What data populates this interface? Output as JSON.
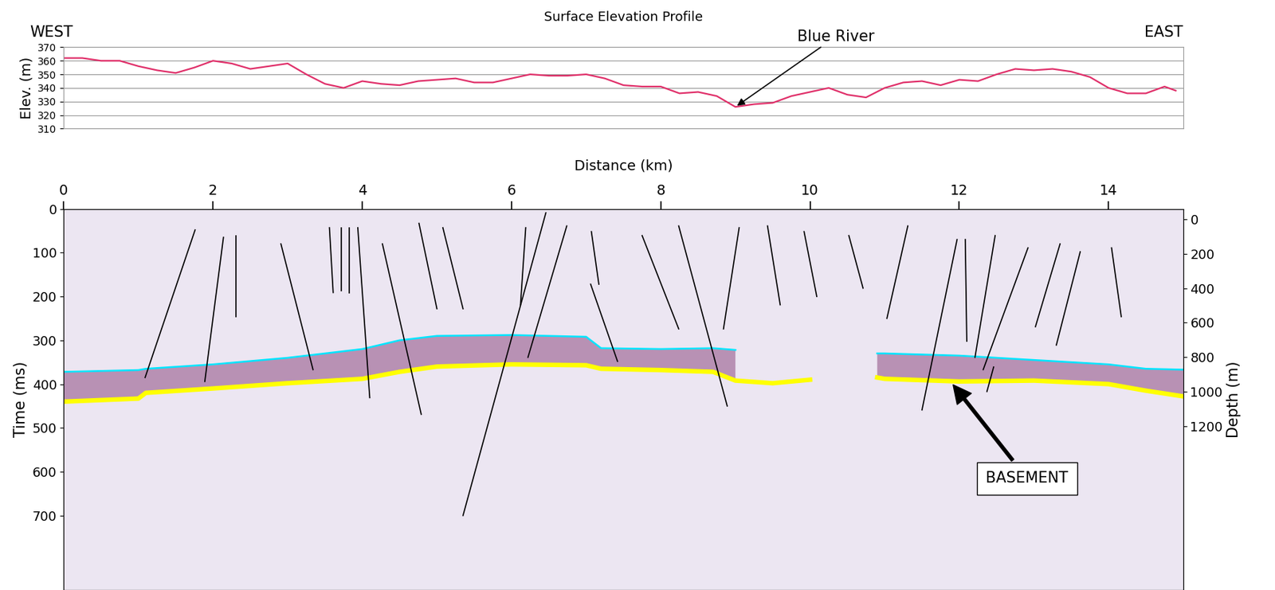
{
  "chart_data": [
    {
      "type": "line",
      "title": "Surface Elevation Profile",
      "y_label": "Elev. (m)",
      "annotations": [
        {
          "text": "WEST"
        },
        {
          "text": "EAST"
        },
        {
          "text": "Blue River",
          "x": 9.0,
          "y": 326
        }
      ],
      "x": [
        0,
        0.25,
        0.5,
        0.75,
        1.0,
        1.25,
        1.5,
        1.75,
        2.0,
        2.25,
        2.5,
        2.75,
        3.0,
        3.25,
        3.5,
        3.75,
        4.0,
        4.25,
        4.5,
        4.75,
        5.0,
        5.25,
        5.5,
        5.75,
        6.0,
        6.25,
        6.5,
        6.75,
        7.0,
        7.25,
        7.5,
        7.75,
        8.0,
        8.25,
        8.5,
        8.75,
        9.0,
        9.25,
        9.5,
        9.75,
        10.0,
        10.25,
        10.5,
        10.75,
        11.0,
        11.25,
        11.5,
        11.75,
        12.0,
        12.25,
        12.5,
        12.75,
        13.0,
        13.25,
        13.5,
        13.75,
        14.0,
        14.25,
        14.5,
        14.75,
        14.9
      ],
      "values": [
        362,
        362,
        360,
        360,
        356,
        353,
        351,
        355,
        360,
        358,
        354,
        356,
        358,
        350,
        343,
        340,
        345,
        343,
        342,
        345,
        346,
        347,
        344,
        344,
        347,
        350,
        349,
        349,
        350,
        347,
        342,
        341,
        341,
        336,
        337,
        334,
        326,
        328,
        329,
        334,
        337,
        340,
        335,
        333,
        340,
        344,
        345,
        342,
        346,
        345,
        350,
        354,
        353,
        354,
        352,
        348,
        340,
        336,
        336,
        341,
        338
      ],
      "color": "#e0306a",
      "xlim": [
        0,
        15
      ],
      "ylim": [
        310,
        370
      ],
      "yticks": [
        310,
        320,
        330,
        340,
        350,
        360,
        370
      ],
      "grid": true,
      "tick_labels": "y"
    },
    {
      "type": "line",
      "x_label": "Distance (km)",
      "y_label": "Time (ms)",
      "y2_label": "Depth (m)",
      "xlim": [
        0,
        15
      ],
      "xticks": [
        0,
        2,
        4,
        6,
        8,
        10,
        12,
        14
      ],
      "ylim": [
        870,
        0
      ],
      "yticks": [
        0,
        100,
        200,
        300,
        400,
        500,
        600,
        700
      ],
      "y2lim": [
        2150,
        -60
      ],
      "y2ticks": [
        0,
        200,
        400,
        600,
        800,
        1000,
        1200
      ],
      "annotations": [
        {
          "text": "BASEMENT",
          "x": 11.9,
          "y": 398
        }
      ],
      "series": [
        {
          "color": "#ffff00",
          "x": [
            0,
            1,
            1.1,
            2,
            3,
            4,
            4.5,
            5,
            6,
            7,
            7.2,
            8,
            8.7,
            9,
            9.5,
            10,
            10.5,
            10.9,
            11,
            12,
            13,
            14,
            14.5,
            15
          ],
          "values": [
            440,
            433,
            420,
            410,
            398,
            388,
            372,
            360,
            355,
            357,
            365,
            368,
            372,
            392,
            398,
            390,
            null,
            385,
            388,
            394,
            392,
            400,
            415,
            428
          ]
        },
        {
          "color": "#00e5ff",
          "x": [
            0,
            1,
            1.1,
            2,
            3,
            4,
            4.5,
            5,
            6,
            7,
            7.2,
            8,
            8.7,
            9,
            9.5,
            10,
            10.5,
            10.9,
            11,
            12,
            13,
            14,
            14.5,
            15
          ],
          "values": [
            372,
            368,
            365,
            355,
            340,
            320,
            300,
            290,
            288,
            292,
            318,
            320,
            318,
            322,
            null,
            null,
            null,
            330,
            330,
            335,
            345,
            355,
            365,
            367
          ]
        },
        {
          "color": "#000000",
          "x": [
            1.76,
            1.09
          ],
          "values": [
            48,
            385
          ]
        },
        {
          "color": "#000000",
          "x": [
            2.14,
            1.89
          ],
          "values": [
            65,
            394
          ]
        },
        {
          "color": "#000000",
          "x": [
            2.31,
            2.31
          ],
          "values": [
            61,
            246
          ]
        },
        {
          "color": "#000000",
          "x": [
            2.91,
            3.34
          ],
          "values": [
            80,
            367
          ]
        },
        {
          "color": "#000000",
          "x": [
            3.56,
            3.61
          ],
          "values": [
            43,
            191
          ]
        },
        {
          "color": "#000000",
          "x": [
            3.72,
            3.72
          ],
          "values": [
            43,
            187
          ]
        },
        {
          "color": "#000000",
          "x": [
            3.83,
            3.83
          ],
          "values": [
            43,
            191
          ]
        },
        {
          "color": "#000000",
          "x": [
            3.94,
            4.1
          ],
          "values": [
            43,
            431
          ]
        },
        {
          "color": "#000000",
          "x": [
            4.27,
            4.79
          ],
          "values": [
            80,
            469
          ]
        },
        {
          "color": "#000000",
          "x": [
            4.76,
            5.0
          ],
          "values": [
            33,
            228
          ]
        },
        {
          "color": "#000000",
          "x": [
            5.08,
            5.35
          ],
          "values": [
            43,
            228
          ]
        },
        {
          "color": "#000000",
          "x": [
            6.19,
            6.12
          ],
          "values": [
            43,
            219
          ]
        },
        {
          "color": "#000000",
          "x": [
            6.46,
            5.35
          ],
          "values": [
            9,
            700
          ]
        },
        {
          "color": "#000000",
          "x": [
            6.74,
            6.22
          ],
          "values": [
            39,
            339
          ]
        },
        {
          "color": "#000000",
          "x": [
            7.07,
            7.17
          ],
          "values": [
            52,
            172
          ]
        },
        {
          "color": "#000000",
          "x": [
            7.06,
            7.42
          ],
          "values": [
            172,
            348
          ]
        },
        {
          "color": "#000000",
          "x": [
            7.75,
            8.24
          ],
          "values": [
            61,
            274
          ]
        },
        {
          "color": "#000000",
          "x": [
            8.24,
            8.89
          ],
          "values": [
            39,
            450
          ]
        },
        {
          "color": "#000000",
          "x": [
            9.05,
            8.84
          ],
          "values": [
            43,
            274
          ]
        },
        {
          "color": "#000000",
          "x": [
            9.43,
            9.6
          ],
          "values": [
            39,
            219
          ]
        },
        {
          "color": "#000000",
          "x": [
            9.92,
            10.09
          ],
          "values": [
            52,
            200
          ]
        },
        {
          "color": "#000000",
          "x": [
            10.52,
            10.71
          ],
          "values": [
            61,
            181
          ]
        },
        {
          "color": "#000000",
          "x": [
            11.31,
            11.03
          ],
          "values": [
            39,
            250
          ]
        },
        {
          "color": "#000000",
          "x": [
            11.97,
            11.5
          ],
          "values": [
            70,
            459
          ]
        },
        {
          "color": "#000000",
          "x": [
            12.08,
            12.1
          ],
          "values": [
            70,
            302
          ]
        },
        {
          "color": "#000000",
          "x": [
            12.48,
            12.21
          ],
          "values": [
            61,
            339
          ]
        },
        {
          "color": "#000000",
          "x": [
            12.92,
            12.32
          ],
          "values": [
            89,
            367
          ]
        },
        {
          "color": "#000000",
          "x": [
            12.46,
            12.37
          ],
          "values": [
            361,
            417
          ]
        },
        {
          "color": "#000000",
          "x": [
            13.35,
            13.02
          ],
          "values": [
            80,
            269
          ]
        },
        {
          "color": "#000000",
          "x": [
            13.62,
            13.3
          ],
          "values": [
            98,
            311
          ]
        },
        {
          "color": "#000000",
          "x": [
            14.04,
            14.17
          ],
          "values": [
            89,
            246
          ]
        }
      ]
    }
  ]
}
